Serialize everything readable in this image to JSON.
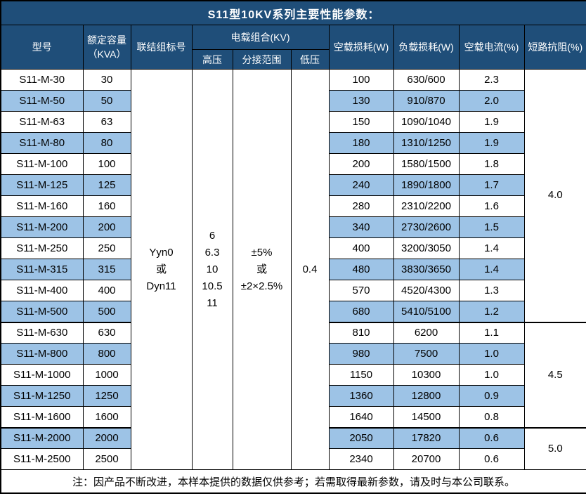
{
  "title": "S11型10KV系列主要性能参数：",
  "colors": {
    "header_bg": "#1F4E79",
    "header_text": "#FFFFFF",
    "stripe_bg": "#9DC3E6",
    "border": "#000000",
    "body_text": "#000000"
  },
  "header": {
    "model": "型号",
    "capacity": "额定容量\n（KVA）",
    "connection": "联结组标号",
    "voltage_group": "电载组合(KV)",
    "hv": "高压",
    "tap_range": "分接范围",
    "lv": "低压",
    "no_load_loss": "空载损耗(W)",
    "load_loss": "负载损耗(W)",
    "no_load_current": "空载电流(%)",
    "impedance": "短路抗阻(%)"
  },
  "merged": {
    "connection_lines": [
      "Yyn0",
      "或",
      "Dyn11"
    ],
    "hv_lines": [
      "6",
      "6.3",
      "10",
      "10.5",
      "11"
    ],
    "tap_lines": [
      "±5%",
      "或",
      "±2×2.5%"
    ],
    "lv": "0.4"
  },
  "impedance_groups": [
    {
      "value": "4.0",
      "span": 12
    },
    {
      "value": "4.5",
      "span": 5
    },
    {
      "value": "5.0",
      "span": 2
    }
  ],
  "rows": [
    {
      "model": "S11-M-30",
      "capacity": "30",
      "no_load_loss": "100",
      "load_loss": "630/600",
      "no_load_current": "2.3"
    },
    {
      "model": "S11-M-50",
      "capacity": "50",
      "no_load_loss": "130",
      "load_loss": "910/870",
      "no_load_current": "2.0"
    },
    {
      "model": "S11-M-63",
      "capacity": "63",
      "no_load_loss": "150",
      "load_loss": "1090/1040",
      "no_load_current": "1.9"
    },
    {
      "model": "S11-M-80",
      "capacity": "80",
      "no_load_loss": "180",
      "load_loss": "1310/1250",
      "no_load_current": "1.9"
    },
    {
      "model": "S11-M-100",
      "capacity": "100",
      "no_load_loss": "200",
      "load_loss": "1580/1500",
      "no_load_current": "1.8"
    },
    {
      "model": "S11-M-125",
      "capacity": "125",
      "no_load_loss": "240",
      "load_loss": "1890/1800",
      "no_load_current": "1.7"
    },
    {
      "model": "S11-M-160",
      "capacity": "160",
      "no_load_loss": "280",
      "load_loss": "2310/2200",
      "no_load_current": "1.6"
    },
    {
      "model": "S11-M-200",
      "capacity": "200",
      "no_load_loss": "340",
      "load_loss": "2730/2600",
      "no_load_current": "1.5"
    },
    {
      "model": "S11-M-250",
      "capacity": "250",
      "no_load_loss": "400",
      "load_loss": "3200/3050",
      "no_load_current": "1.4"
    },
    {
      "model": "S11-M-315",
      "capacity": "315",
      "no_load_loss": "480",
      "load_loss": "3830/3650",
      "no_load_current": "1.4"
    },
    {
      "model": "S11-M-400",
      "capacity": "400",
      "no_load_loss": "570",
      "load_loss": "4520/4300",
      "no_load_current": "1.3"
    },
    {
      "model": "S11-M-500",
      "capacity": "500",
      "no_load_loss": "680",
      "load_loss": "5410/5100",
      "no_load_current": "1.2"
    },
    {
      "model": "S11-M-630",
      "capacity": "630",
      "no_load_loss": "810",
      "load_loss": "6200",
      "no_load_current": "1.1"
    },
    {
      "model": "S11-M-800",
      "capacity": "800",
      "no_load_loss": "980",
      "load_loss": "7500",
      "no_load_current": "1.0"
    },
    {
      "model": "S11-M-1000",
      "capacity": "1000",
      "no_load_loss": "1150",
      "load_loss": "10300",
      "no_load_current": "1.0"
    },
    {
      "model": "S11-M-1250",
      "capacity": "1250",
      "no_load_loss": "1360",
      "load_loss": "12800",
      "no_load_current": "0.9"
    },
    {
      "model": "S11-M-1600",
      "capacity": "1600",
      "no_load_loss": "1640",
      "load_loss": "14500",
      "no_load_current": "0.8"
    },
    {
      "model": "S11-M-2000",
      "capacity": "2000",
      "no_load_loss": "2050",
      "load_loss": "17820",
      "no_load_current": "0.6"
    },
    {
      "model": "S11-M-2500",
      "capacity": "2500",
      "no_load_loss": "2340",
      "load_loss": "20700",
      "no_load_current": "0.6"
    }
  ],
  "footer_note": "注：因产品不断改进，本样本提供的数据仅供参考；若需取得最新参数，请及时与本公司联系。"
}
